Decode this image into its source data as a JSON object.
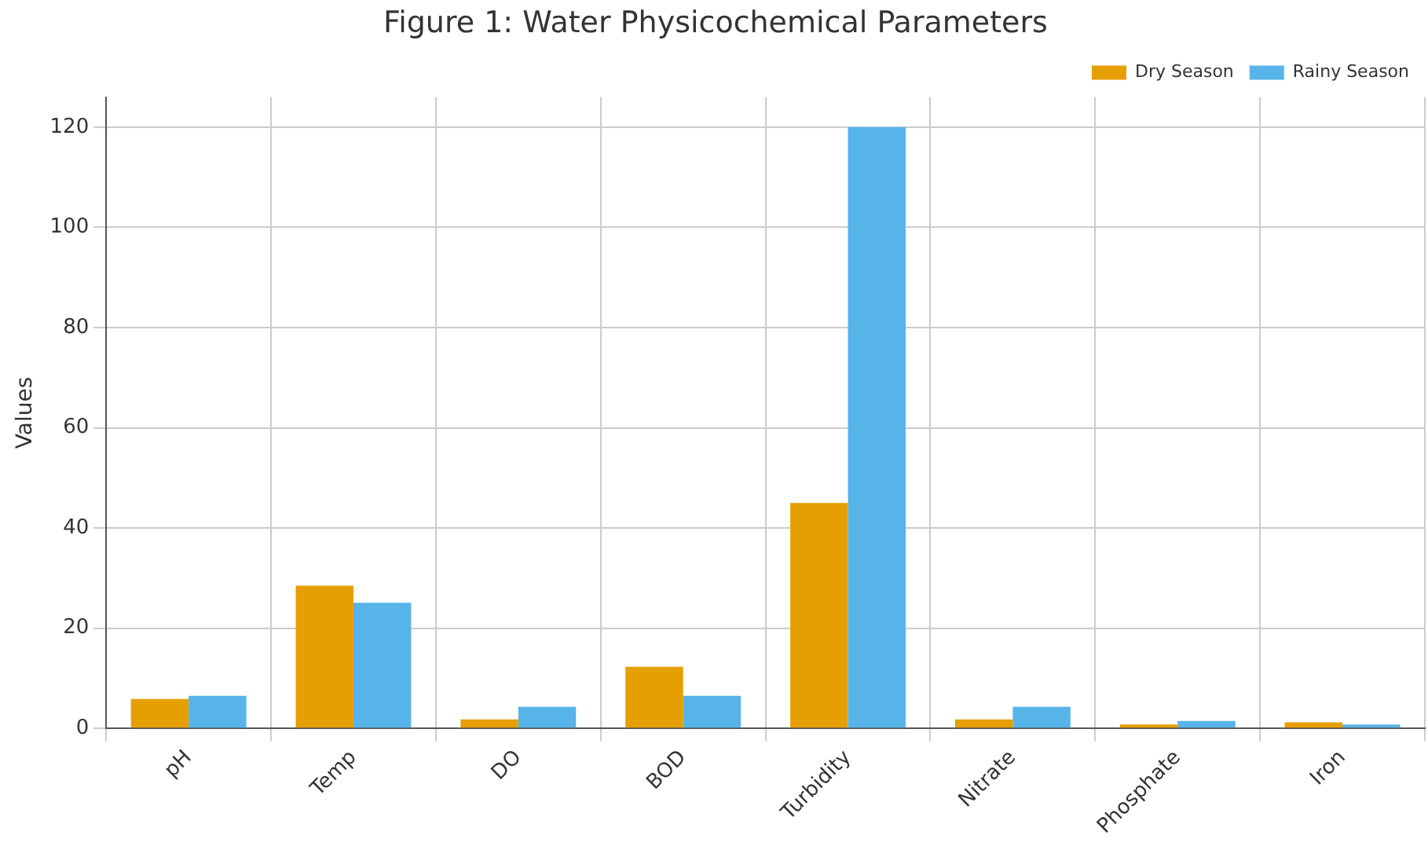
{
  "chart_data": {
    "type": "bar",
    "title": "Figure 1: Water Physicochemical Parameters",
    "ylabel": "Values",
    "categories": [
      "pH",
      "Temp",
      "DO",
      "BOD",
      "Turbidity",
      "Nitrate",
      "Phosphate",
      "Iron"
    ],
    "series": [
      {
        "name": "Dry Season",
        "color": "#e69f00",
        "values": [
          5.9,
          28.5,
          1.8,
          12.3,
          45,
          1.8,
          0.8,
          1.2
        ]
      },
      {
        "name": "Rainy Season",
        "color": "#56b4e9",
        "values": [
          6.5,
          25.1,
          4.3,
          6.5,
          120,
          4.3,
          1.5,
          0.8
        ]
      }
    ],
    "ylim": [
      0,
      126
    ],
    "yticks": [
      0,
      20,
      40,
      60,
      80,
      100,
      120
    ],
    "grid": true,
    "legend": "top right"
  }
}
